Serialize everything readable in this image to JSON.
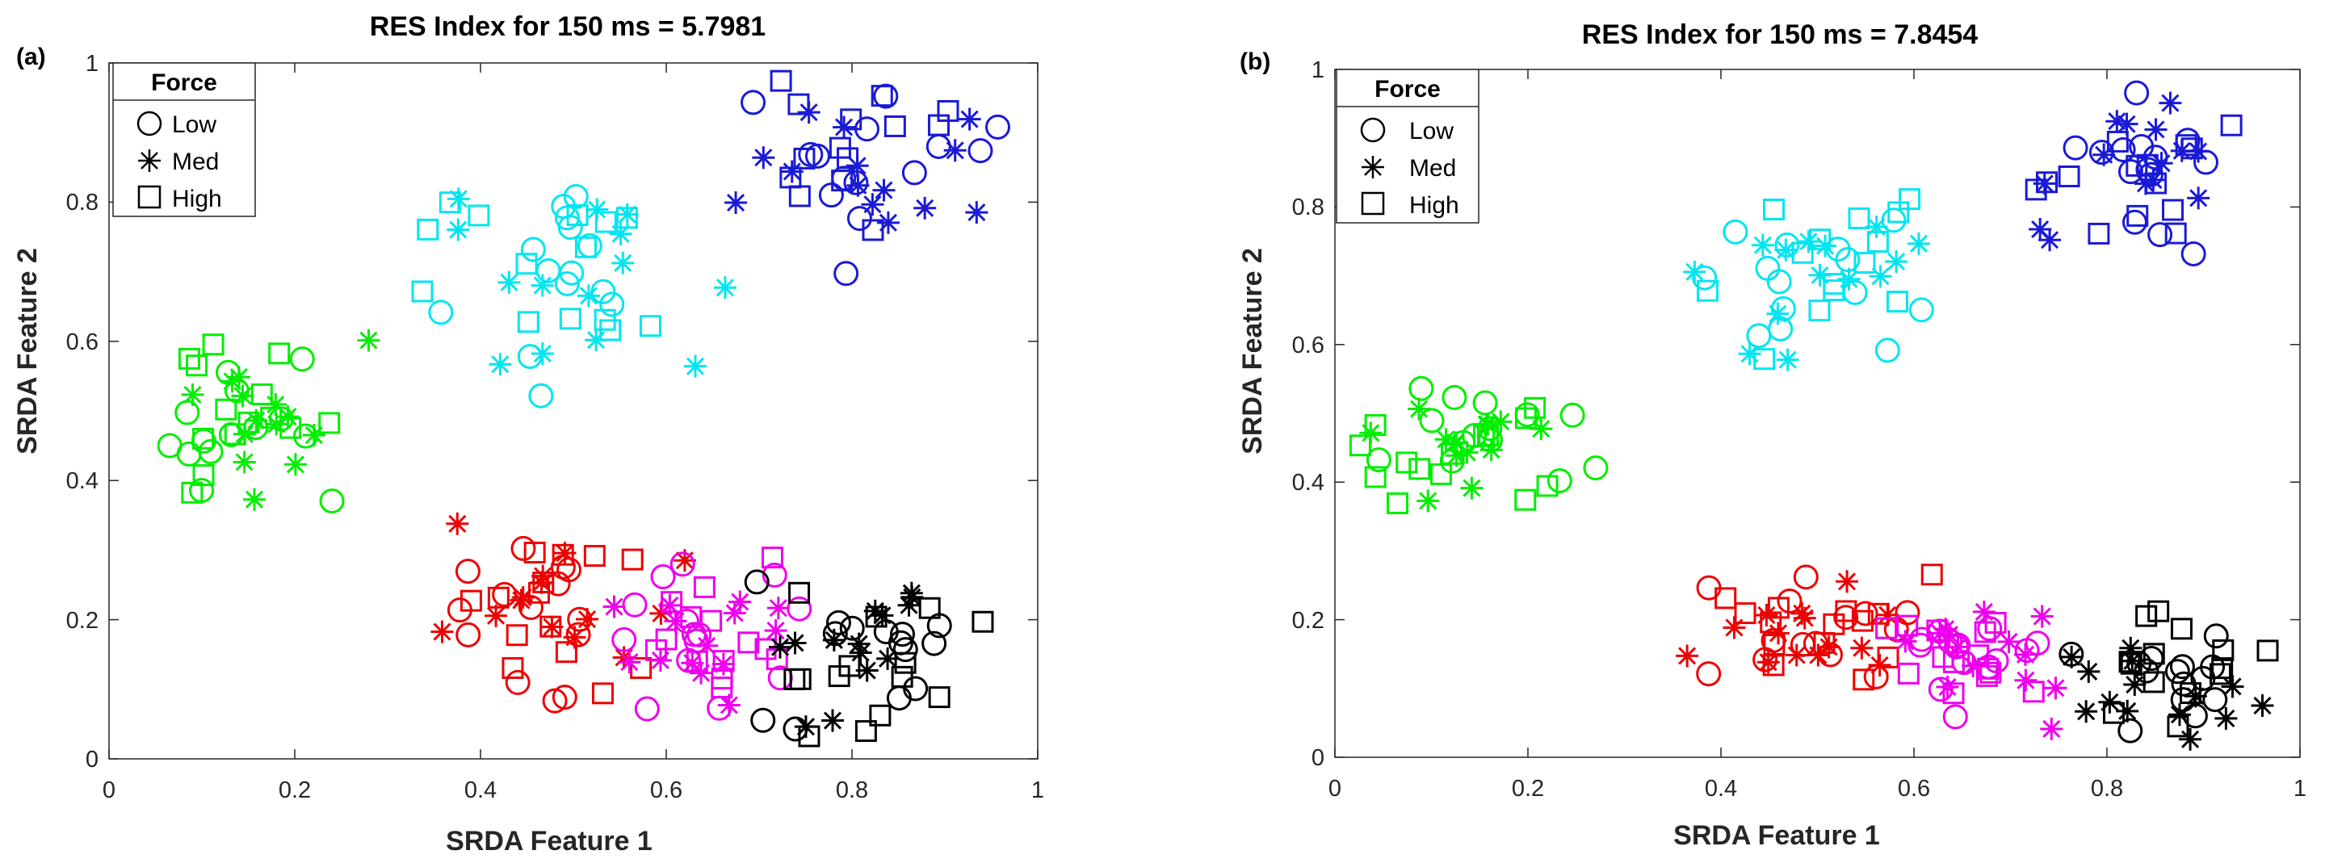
{
  "chart_data": [
    {
      "type": "scatter",
      "panel_label": "(a)",
      "title": "RES Index for 150 ms =  5.7981",
      "xlabel": "SRDA Feature 1",
      "ylabel": "SRDA Feature 2",
      "xlim": [
        0,
        1
      ],
      "ylim": [
        0,
        1
      ],
      "xticks": [
        "0",
        "0.2",
        "0.4",
        "0.6",
        "0.8",
        "1"
      ],
      "yticks": [
        "0",
        "0.2",
        "0.4",
        "0.6",
        "0.8",
        "1"
      ],
      "grid": false,
      "legend": {
        "title": "Force",
        "position": "top-left",
        "entries": [
          {
            "label": "Low",
            "marker": "circle"
          },
          {
            "label": "Med",
            "marker": "asterisk"
          },
          {
            "label": "High",
            "marker": "square"
          }
        ]
      },
      "series": [
        {
          "name": "green",
          "color": "#00ee00",
          "center": [
            0.15,
            0.49
          ],
          "spread": [
            0.12,
            0.12
          ]
        },
        {
          "name": "cyan",
          "color": "#00e6f0",
          "center": [
            0.5,
            0.68
          ],
          "spread": [
            0.17,
            0.16
          ]
        },
        {
          "name": "blue",
          "color": "#1a1ad6",
          "center": [
            0.8,
            0.85
          ],
          "spread": [
            0.14,
            0.14
          ]
        },
        {
          "name": "red",
          "color": "#ee0000",
          "center": [
            0.48,
            0.2
          ],
          "spread": [
            0.15,
            0.14
          ]
        },
        {
          "name": "magenta",
          "color": "#ee00ee",
          "center": [
            0.64,
            0.18
          ],
          "spread": [
            0.1,
            0.12
          ]
        },
        {
          "name": "black",
          "color": "#000000",
          "center": [
            0.82,
            0.15
          ],
          "spread": [
            0.12,
            0.13
          ]
        }
      ]
    },
    {
      "type": "scatter",
      "panel_label": "(b)",
      "title": "RES Index for 150 ms =  7.8454",
      "xlabel": "SRDA Feature 1",
      "ylabel": "SRDA Feature 2",
      "xlim": [
        0,
        1
      ],
      "ylim": [
        0,
        1
      ],
      "xticks": [
        "0",
        "0.2",
        "0.4",
        "0.6",
        "0.8",
        "1"
      ],
      "yticks": [
        "0",
        "0.2",
        "0.4",
        "0.6",
        "0.8",
        "1"
      ],
      "grid": false,
      "legend": {
        "title": "Force",
        "position": "top-left",
        "entries": [
          {
            "label": "Low",
            "marker": "circle"
          },
          {
            "label": "Med",
            "marker": "asterisk"
          },
          {
            "label": "High",
            "marker": "square"
          }
        ]
      },
      "series": [
        {
          "name": "green",
          "color": "#00ee00",
          "center": [
            0.14,
            0.46
          ],
          "spread": [
            0.12,
            0.1
          ]
        },
        {
          "name": "cyan",
          "color": "#00e6f0",
          "center": [
            0.5,
            0.7
          ],
          "spread": [
            0.14,
            0.12
          ]
        },
        {
          "name": "blue",
          "color": "#1a1ad6",
          "center": [
            0.82,
            0.85
          ],
          "spread": [
            0.12,
            0.12
          ]
        },
        {
          "name": "red",
          "color": "#ee0000",
          "center": [
            0.5,
            0.17
          ],
          "spread": [
            0.12,
            0.1
          ]
        },
        {
          "name": "magenta",
          "color": "#ee00ee",
          "center": [
            0.66,
            0.15
          ],
          "spread": [
            0.1,
            0.1
          ]
        },
        {
          "name": "black",
          "color": "#000000",
          "center": [
            0.84,
            0.12
          ],
          "spread": [
            0.12,
            0.1
          ]
        }
      ]
    }
  ]
}
